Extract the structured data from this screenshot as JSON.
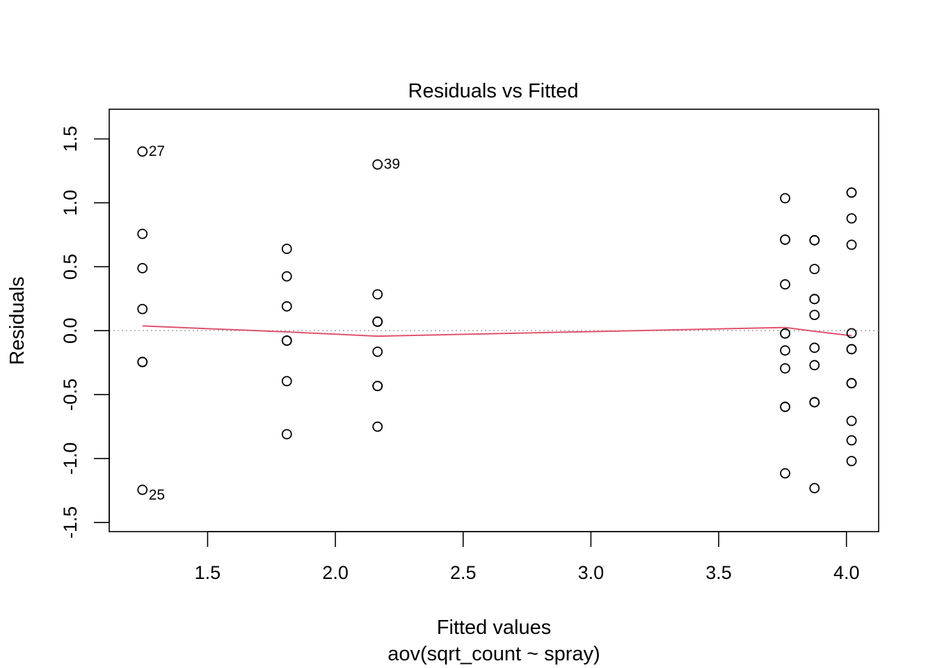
{
  "chart_data": {
    "type": "scatter",
    "title": "Residuals vs Fitted",
    "xlabel": "Fitted values",
    "subtitle": "aov(sqrt_count ~ spray)",
    "ylabel": "Residuals",
    "xlim": [
      1.115,
      4.126
    ],
    "ylim": [
      -1.572,
      1.732
    ],
    "xticks": [
      1.5,
      2.0,
      2.5,
      3.0,
      3.5,
      4.0
    ],
    "yticks": [
      -1.5,
      -1.0,
      -0.5,
      0.0,
      0.5,
      1.0,
      1.5
    ],
    "xtick_labels": [
      "1.5",
      "2.0",
      "2.5",
      "3.0",
      "3.5",
      "4.0"
    ],
    "ytick_labels": [
      "-1.5",
      "-1.0",
      "-0.5",
      "0.0",
      "0.5",
      "1.0",
      "1.5"
    ],
    "grid": false,
    "reference_line": {
      "y": 0,
      "style": "dotted",
      "color": "#aaaaaa"
    },
    "smooth_color": "#DF536B",
    "points": [
      {
        "x": 1.245,
        "y": 1.401,
        "label": "27"
      },
      {
        "x": 1.245,
        "y": 0.757
      },
      {
        "x": 1.245,
        "y": 0.489
      },
      {
        "x": 1.245,
        "y": 0.169
      },
      {
        "x": 1.245,
        "y": -0.245
      },
      {
        "x": 1.245,
        "y": -0.245
      },
      {
        "x": 1.245,
        "y": -1.245,
        "label": "25"
      },
      {
        "x": 1.81,
        "y": 0.64
      },
      {
        "x": 1.81,
        "y": 0.425
      },
      {
        "x": 1.81,
        "y": 0.19
      },
      {
        "x": 1.81,
        "y": -0.078
      },
      {
        "x": 1.81,
        "y": -0.078
      },
      {
        "x": 1.81,
        "y": -0.395
      },
      {
        "x": 1.81,
        "y": -0.81
      },
      {
        "x": 2.165,
        "y": 1.3,
        "label": "39"
      },
      {
        "x": 2.165,
        "y": 0.284
      },
      {
        "x": 2.165,
        "y": 0.07
      },
      {
        "x": 2.165,
        "y": 0.07
      },
      {
        "x": 2.165,
        "y": -0.165
      },
      {
        "x": 2.165,
        "y": -0.433
      },
      {
        "x": 2.165,
        "y": -0.433
      },
      {
        "x": 2.165,
        "y": -0.751
      },
      {
        "x": 3.76,
        "y": 1.036
      },
      {
        "x": 3.76,
        "y": 0.712
      },
      {
        "x": 3.76,
        "y": 0.712
      },
      {
        "x": 3.76,
        "y": 0.362
      },
      {
        "x": 3.76,
        "y": -0.022
      },
      {
        "x": 3.76,
        "y": -0.022
      },
      {
        "x": 3.76,
        "y": -0.155
      },
      {
        "x": 3.76,
        "y": -0.295
      },
      {
        "x": 3.76,
        "y": -0.596
      },
      {
        "x": 3.76,
        "y": -0.596
      },
      {
        "x": 3.76,
        "y": -1.116
      },
      {
        "x": 3.875,
        "y": 0.707
      },
      {
        "x": 3.875,
        "y": 0.707
      },
      {
        "x": 3.875,
        "y": 0.482
      },
      {
        "x": 3.875,
        "y": 0.247
      },
      {
        "x": 3.875,
        "y": 0.247
      },
      {
        "x": 3.875,
        "y": 0.123
      },
      {
        "x": 3.875,
        "y": -0.134
      },
      {
        "x": 3.875,
        "y": -0.27
      },
      {
        "x": 3.875,
        "y": -0.56
      },
      {
        "x": 3.875,
        "y": -0.56
      },
      {
        "x": 3.875,
        "y": -1.232
      },
      {
        "x": 4.02,
        "y": 1.08
      },
      {
        "x": 4.02,
        "y": 1.08
      },
      {
        "x": 4.02,
        "y": 0.878
      },
      {
        "x": 4.02,
        "y": 0.672
      },
      {
        "x": 4.02,
        "y": -0.02
      },
      {
        "x": 4.02,
        "y": -0.145
      },
      {
        "x": 4.02,
        "y": -0.145
      },
      {
        "x": 4.02,
        "y": -0.411
      },
      {
        "x": 4.02,
        "y": -0.411
      },
      {
        "x": 4.02,
        "y": -0.706
      },
      {
        "x": 4.02,
        "y": -0.858
      },
      {
        "x": 4.02,
        "y": -1.02
      }
    ],
    "smooth_line": [
      {
        "x": 1.245,
        "y": 0.037
      },
      {
        "x": 1.81,
        "y": -0.01
      },
      {
        "x": 2.165,
        "y": -0.043
      },
      {
        "x": 3.76,
        "y": 0.025
      },
      {
        "x": 3.875,
        "y": -0.005
      },
      {
        "x": 4.02,
        "y": -0.04
      }
    ]
  }
}
